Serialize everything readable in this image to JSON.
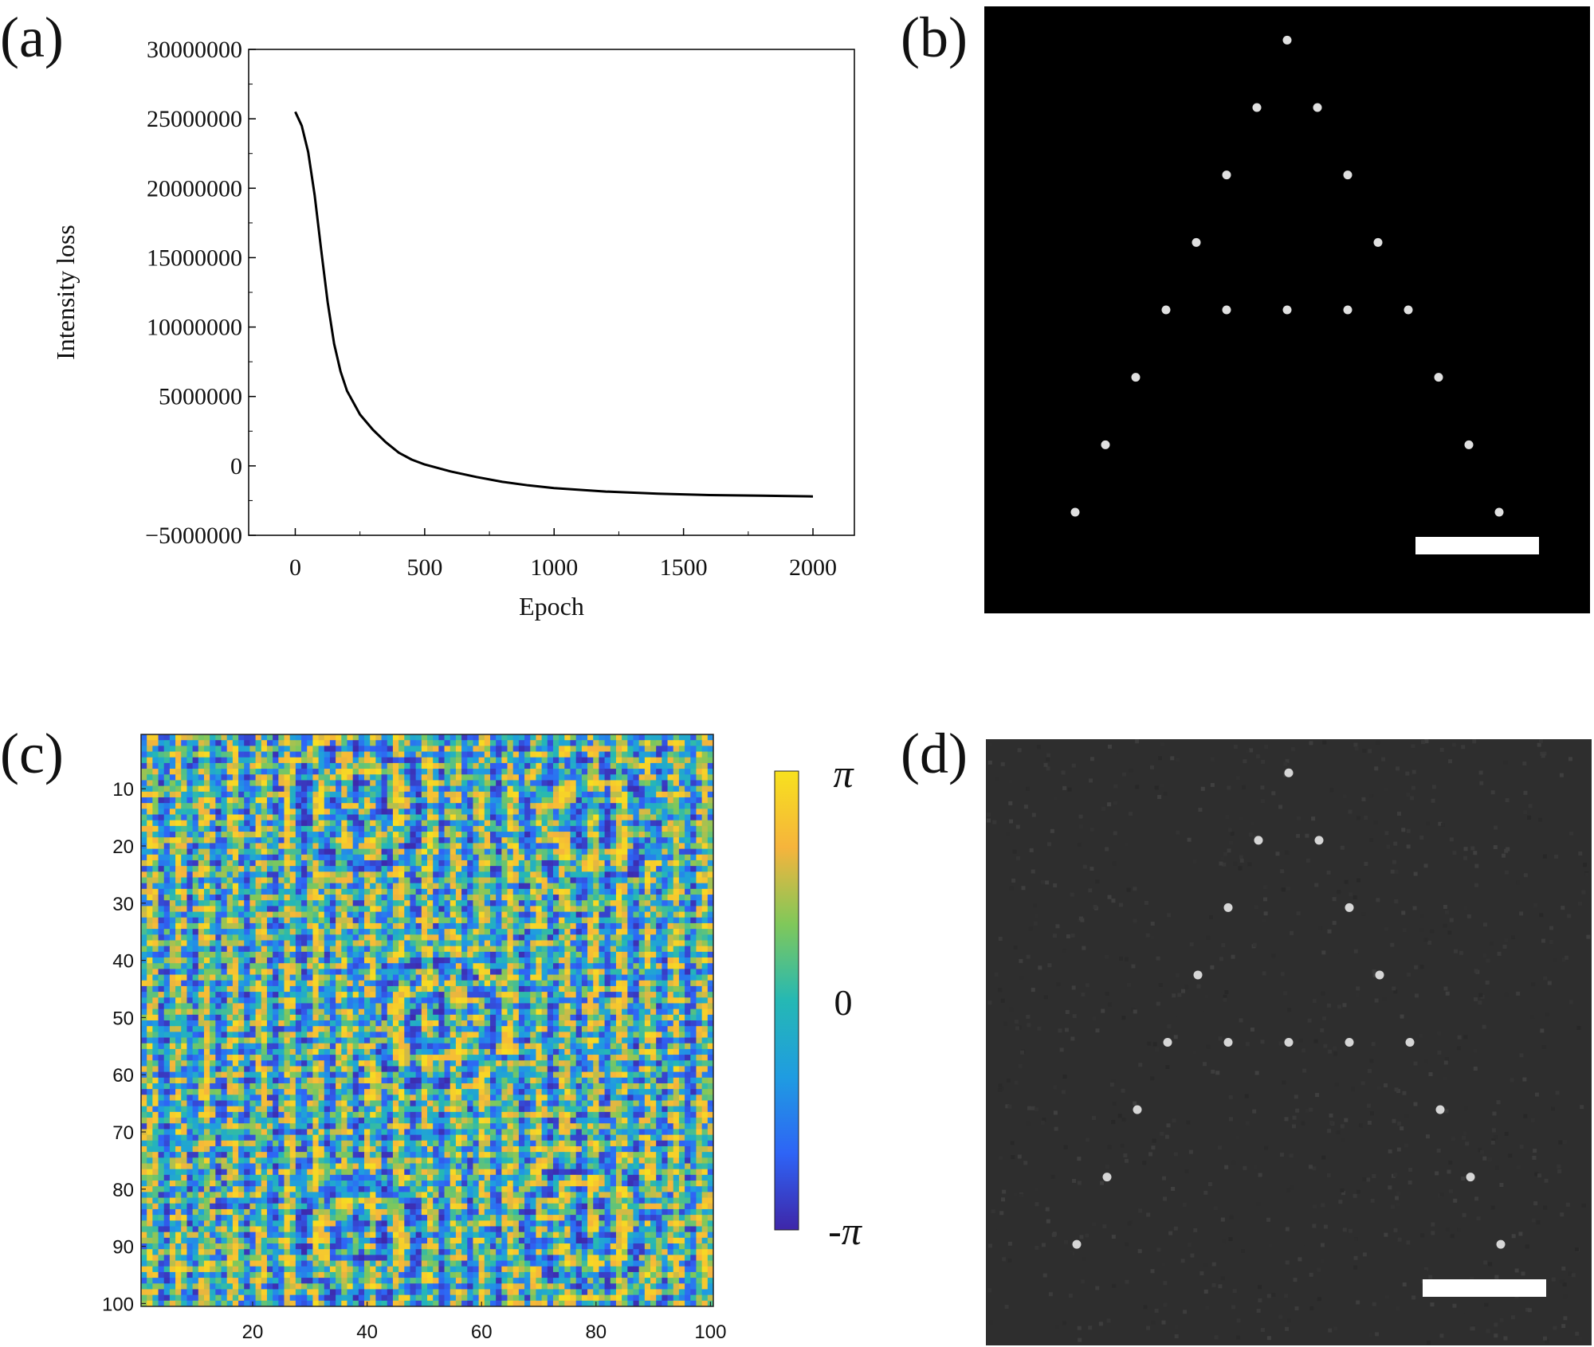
{
  "panels": {
    "a": "(a)",
    "b": "(b)",
    "c": "(c)",
    "d": "(d)"
  },
  "chart_data": [
    {
      "type": "line",
      "panel": "a",
      "title": "",
      "xlabel": "Epoch",
      "ylabel": "Intensity loss",
      "xlim": [
        -180,
        2160
      ],
      "ylim": [
        -5000000,
        30000000
      ],
      "xticks": [
        0,
        500,
        1000,
        1500,
        2000
      ],
      "xtick_labels": [
        "0",
        "500",
        "1000",
        "1500",
        "2000"
      ],
      "yticks": [
        -5000000,
        0,
        5000000,
        10000000,
        15000000,
        20000000,
        25000000,
        30000000
      ],
      "ytick_labels": [
        "−5000000",
        "0",
        "5000000",
        "10000000",
        "15000000",
        "20000000",
        "25000000",
        "30000000"
      ],
      "grid": false,
      "series": [
        {
          "name": "Intensity loss",
          "color": "#000000",
          "x": [
            0,
            25,
            50,
            75,
            100,
            125,
            150,
            175,
            200,
            250,
            300,
            350,
            400,
            450,
            500,
            600,
            700,
            800,
            900,
            1000,
            1200,
            1400,
            1600,
            1800,
            2000
          ],
          "y": [
            25500000,
            24500000,
            22600000,
            19500000,
            15600000,
            11800000,
            8800000,
            6800000,
            5400000,
            3700000,
            2600000,
            1700000,
            950000,
            450000,
            100000,
            -400000,
            -800000,
            -1150000,
            -1400000,
            -1600000,
            -1850000,
            -2000000,
            -2100000,
            -2150000,
            -2200000
          ]
        }
      ]
    },
    {
      "type": "scatter",
      "panel": "b",
      "title": "",
      "background": "#000000",
      "point_color": "#e0e0e0",
      "xlim": [
        0,
        20
      ],
      "ylim": [
        0,
        18
      ],
      "x": [
        10,
        9,
        11,
        8,
        12,
        7,
        13,
        6,
        8,
        10,
        12,
        14,
        5,
        15,
        4,
        16,
        3,
        17
      ],
      "y": [
        1,
        3,
        3,
        5,
        5,
        7,
        7,
        9,
        9,
        9,
        9,
        9,
        11,
        11,
        13,
        13,
        15,
        15
      ],
      "scale_bar_color": "#ffffff"
    },
    {
      "type": "heatmap",
      "panel": "c",
      "title": "",
      "rows": 100,
      "cols": 100,
      "xticks": [
        20,
        40,
        60,
        80,
        100
      ],
      "yticks": [
        10,
        20,
        30,
        40,
        50,
        60,
        70,
        80,
        90,
        100
      ],
      "xtick_labels": [
        "20",
        "40",
        "60",
        "80",
        "100"
      ],
      "ytick_labels": [
        "10",
        "20",
        "30",
        "40",
        "50",
        "60",
        "70",
        "80",
        "90",
        "100"
      ],
      "colormap": [
        "#3e26a8",
        "#2e64f6",
        "#1f9ce1",
        "#25b8b4",
        "#80c85a",
        "#f6b43c",
        "#f7e11e"
      ],
      "value_range": [
        -3.14159,
        3.14159
      ],
      "colorbar": {
        "max_label": "π",
        "mid_label": "0",
        "min_label": "-π"
      }
    },
    {
      "type": "scatter",
      "panel": "d",
      "title": "",
      "background": "#2e2e2e",
      "point_color": "#d6d6d6",
      "xlim": [
        0,
        20
      ],
      "ylim": [
        0,
        18
      ],
      "x": [
        10,
        9,
        11,
        8,
        12,
        7,
        13,
        6,
        8,
        10,
        12,
        14,
        5,
        15,
        4,
        16,
        3,
        17
      ],
      "y": [
        1,
        3,
        3,
        5,
        5,
        7,
        7,
        9,
        9,
        9,
        9,
        9,
        11,
        11,
        13,
        13,
        15,
        15
      ],
      "scale_bar_color": "#ffffff"
    }
  ]
}
